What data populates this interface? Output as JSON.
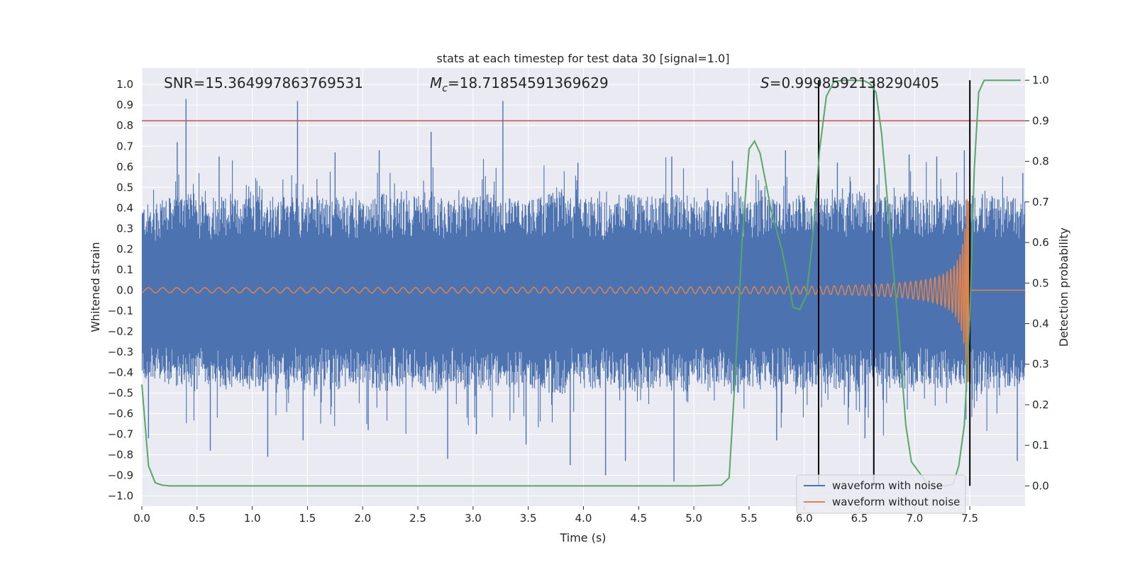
{
  "chart_data": {
    "type": "line",
    "title": "stats at each timestep for test data 30 [signal=1.0]",
    "xlabel": "Time (s)",
    "ylabel_left": "Whitened strain",
    "ylabel_right": "Detection probability",
    "xlim": [
      0.0,
      8.0
    ],
    "ylim_left": [
      -1.05,
      1.08
    ],
    "ylim_right": [
      -0.05,
      1.03
    ],
    "x_ticks": [
      "0.0",
      "0.5",
      "1.0",
      "1.5",
      "2.0",
      "2.5",
      "3.0",
      "3.5",
      "4.0",
      "4.5",
      "5.0",
      "5.5",
      "6.0",
      "6.5",
      "7.0",
      "7.5"
    ],
    "y_ticks_left": [
      "1.0",
      "0.9",
      "0.8",
      "0.7",
      "0.6",
      "0.5",
      "0.4",
      "0.3",
      "0.2",
      "0.1",
      "0.0",
      "−0.1",
      "−0.2",
      "−0.3",
      "−0.4",
      "−0.5",
      "−0.6",
      "−0.7",
      "−0.8",
      "−0.9",
      "−1.0"
    ],
    "y_ticks_right": [
      "1.0",
      "0.9",
      "0.8",
      "0.7",
      "0.6",
      "0.5",
      "0.4",
      "0.3",
      "0.2",
      "0.1",
      "0.0"
    ],
    "annotations": {
      "snr": "SNR=15.364997863769531",
      "mc_symbol": "M",
      "mc_sub": "c",
      "mc_value": "=18.71854591369629",
      "s_symbol": "S",
      "s_value": "=0.9998592138290405"
    },
    "threshold": {
      "value": 0.9,
      "axis": "right",
      "color": "#c44e52"
    },
    "vlines": [
      6.13,
      6.63,
      7.5
    ],
    "legend": {
      "position": "lower-right",
      "entries": [
        {
          "label": "waveform with noise",
          "color": "#4c72b0"
        },
        {
          "label": "waveform without noise",
          "color": "#dd8452"
        }
      ]
    },
    "series": [
      {
        "name": "waveform with noise",
        "axis": "left",
        "color": "#4c72b0",
        "envelope_top": [
          0.42,
          0.45,
          0.47,
          0.44,
          0.46,
          0.45,
          0.48,
          0.44,
          0.46,
          0.47,
          0.45,
          0.46,
          0.44,
          0.47,
          0.45,
          0.46,
          0.48,
          0.44,
          0.46,
          0.47,
          0.45,
          0.44,
          0.46,
          0.48,
          0.45,
          0.46,
          0.44,
          0.47,
          0.46,
          0.45,
          0.47,
          0.44,
          0.46,
          0.48,
          0.45,
          0.46,
          0.44,
          0.47,
          0.45,
          0.46,
          0.48,
          0.45,
          0.46,
          0.47,
          0.45,
          0.46,
          0.44,
          0.47,
          0.46,
          0.45
        ],
        "spikes": [
          [
            0.4,
            0.93
          ],
          [
            0.32,
            0.72
          ],
          [
            1.41,
            0.92
          ],
          [
            2.62,
            0.77
          ],
          [
            3.27,
            0.92
          ],
          [
            0.7,
            0.65
          ],
          [
            1.75,
            0.67
          ],
          [
            2.15,
            0.68
          ],
          [
            3.95,
            0.62
          ],
          [
            4.8,
            0.65
          ],
          [
            5.35,
            0.63
          ],
          [
            5.83,
            0.68
          ],
          [
            6.3,
            0.62
          ],
          [
            6.95,
            0.66
          ],
          [
            7.2,
            0.65
          ],
          [
            7.45,
            0.68
          ],
          [
            7.98,
            0.57
          ],
          [
            4.82,
            -0.93
          ],
          [
            4.2,
            -0.9
          ],
          [
            3.88,
            -0.85
          ],
          [
            1.14,
            -0.81
          ],
          [
            0.62,
            -0.78
          ],
          [
            2.77,
            -0.82
          ],
          [
            4.38,
            -0.83
          ],
          [
            7.93,
            -0.83
          ],
          [
            1.46,
            -0.73
          ],
          [
            3.48,
            -0.75
          ],
          [
            0.06,
            -0.72
          ],
          [
            5.75,
            -0.73
          ],
          [
            6.55,
            -0.72
          ],
          [
            2.05,
            -0.68
          ],
          [
            3.03,
            -0.7
          ]
        ]
      },
      {
        "name": "waveform without noise",
        "axis": "left",
        "color": "#dd8452",
        "t_merger": 7.5,
        "amplitude_start": 0.012,
        "amplitude_at_6": 0.045,
        "amplitude_peak": 0.45
      },
      {
        "name": "detection probability",
        "axis": "right",
        "color": "#55a868",
        "x": [
          0.0,
          0.06,
          0.12,
          0.18,
          0.25,
          0.5,
          1.0,
          2.0,
          3.0,
          4.0,
          5.0,
          5.25,
          5.32,
          5.38,
          5.44,
          5.5,
          5.55,
          5.6,
          5.7,
          5.8,
          5.9,
          5.96,
          6.02,
          6.08,
          6.14,
          6.2,
          6.27,
          6.35,
          6.45,
          6.55,
          6.6,
          6.65,
          6.7,
          6.77,
          6.85,
          6.92,
          6.97,
          7.05,
          7.12,
          7.2,
          7.28,
          7.35,
          7.4,
          7.45,
          7.5,
          7.54,
          7.58,
          7.63,
          7.7,
          7.8,
          7.96
        ],
        "y": [
          0.25,
          0.05,
          0.008,
          0.002,
          0.0,
          0.0,
          0.0,
          0.0,
          0.0,
          0.0,
          0.0,
          0.002,
          0.02,
          0.3,
          0.62,
          0.83,
          0.85,
          0.82,
          0.68,
          0.58,
          0.44,
          0.435,
          0.47,
          0.62,
          0.83,
          0.96,
          0.997,
          1.0,
          1.0,
          0.998,
          0.99,
          0.97,
          0.87,
          0.65,
          0.4,
          0.15,
          0.06,
          0.03,
          0.003,
          0.0,
          0.0,
          0.005,
          0.05,
          0.15,
          0.42,
          0.78,
          0.97,
          1.0,
          1.0,
          1.0,
          1.0
        ]
      }
    ]
  }
}
